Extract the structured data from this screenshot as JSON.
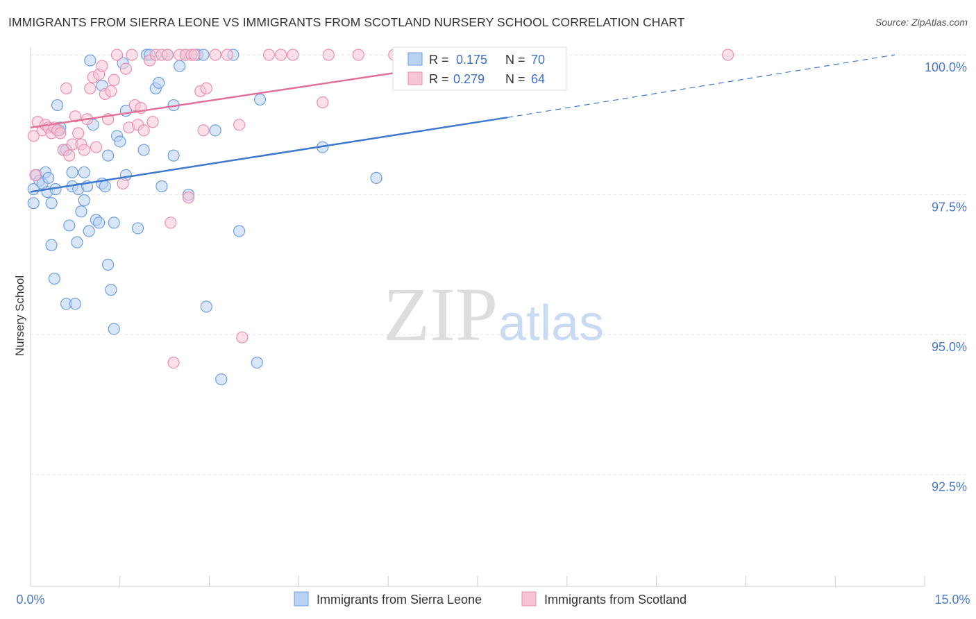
{
  "header": {
    "title": "IMMIGRANTS FROM SIERRA LEONE VS IMMIGRANTS FROM SCOTLAND NURSERY SCHOOL CORRELATION CHART",
    "source": "Source: ZipAtlas.com"
  },
  "watermark": {
    "zip": "ZIP",
    "atlas": "atlas"
  },
  "legend_box": {
    "rows": [
      {
        "r_label": "R =",
        "r_value": "0.175",
        "n_label": "N =",
        "n_value": "70"
      },
      {
        "r_label": "R =",
        "r_value": "0.279",
        "n_label": "N =",
        "n_value": "64"
      }
    ]
  },
  "bottom_legend": {
    "items": [
      "Immigrants from Sierra Leone",
      "Immigrants from Scotland"
    ]
  },
  "chart_data": {
    "type": "scatter",
    "title": "IMMIGRANTS FROM SIERRA LEONE VS IMMIGRANTS FROM SCOTLAND NURSERY SCHOOL CORRELATION CHART",
    "xlabel": "",
    "ylabel": "Nursery School",
    "xlim": [
      0,
      15
    ],
    "ylim": [
      90.5,
      100.2
    ],
    "x_tick_labels": [
      "0.0%",
      "15.0%"
    ],
    "y_ticks": [
      92.5,
      95.0,
      97.5,
      100.0
    ],
    "y_tick_labels": [
      "92.5%",
      "95.0%",
      "97.5%",
      "100.0%"
    ],
    "grid": true,
    "legend_position": "top-center",
    "series": [
      {
        "name": "Immigrants from Sierra Leone",
        "color": "#6f9fe0",
        "fill": "#b9d1f3",
        "R": 0.175,
        "N": 70,
        "trend": {
          "x0": 0.0,
          "y0": 97.55,
          "x1": 8.0,
          "y1": 98.88,
          "dash_to_x": 14.5,
          "dash_to_y": 100.0
        },
        "points": [
          [
            0.05,
            97.35
          ],
          [
            0.05,
            97.6
          ],
          [
            0.1,
            97.85
          ],
          [
            0.15,
            97.75
          ],
          [
            0.2,
            97.7
          ],
          [
            0.25,
            97.9
          ],
          [
            0.28,
            97.55
          ],
          [
            0.3,
            97.8
          ],
          [
            0.35,
            96.6
          ],
          [
            0.35,
            97.35
          ],
          [
            0.4,
            96.0
          ],
          [
            0.42,
            97.6
          ],
          [
            0.45,
            99.1
          ],
          [
            0.48,
            98.65
          ],
          [
            0.5,
            98.7
          ],
          [
            0.55,
            98.3
          ],
          [
            0.6,
            98.3
          ],
          [
            0.6,
            95.55
          ],
          [
            0.65,
            96.95
          ],
          [
            0.7,
            97.65
          ],
          [
            0.7,
            97.9
          ],
          [
            0.75,
            95.55
          ],
          [
            0.78,
            96.65
          ],
          [
            0.8,
            97.6
          ],
          [
            0.85,
            97.2
          ],
          [
            0.9,
            97.9
          ],
          [
            0.9,
            97.4
          ],
          [
            0.95,
            97.65
          ],
          [
            0.98,
            96.85
          ],
          [
            1.0,
            99.9
          ],
          [
            1.05,
            98.75
          ],
          [
            1.1,
            97.05
          ],
          [
            1.15,
            97.0
          ],
          [
            1.2,
            99.45
          ],
          [
            1.2,
            97.7
          ],
          [
            1.25,
            97.65
          ],
          [
            1.3,
            96.25
          ],
          [
            1.3,
            98.2
          ],
          [
            1.35,
            95.8
          ],
          [
            1.4,
            97.0
          ],
          [
            1.4,
            95.1
          ],
          [
            1.45,
            98.55
          ],
          [
            1.5,
            98.45
          ],
          [
            1.55,
            99.85
          ],
          [
            1.6,
            97.85
          ],
          [
            1.6,
            99.0
          ],
          [
            1.8,
            96.9
          ],
          [
            1.9,
            98.3
          ],
          [
            1.95,
            100.0
          ],
          [
            2.0,
            100.0
          ],
          [
            2.1,
            99.4
          ],
          [
            2.15,
            99.5
          ],
          [
            2.2,
            97.65
          ],
          [
            2.3,
            100.0
          ],
          [
            2.4,
            99.1
          ],
          [
            2.4,
            98.2
          ],
          [
            2.5,
            99.8
          ],
          [
            2.6,
            100.0
          ],
          [
            2.65,
            97.5
          ],
          [
            2.8,
            100.0
          ],
          [
            2.9,
            100.0
          ],
          [
            2.95,
            95.5
          ],
          [
            3.1,
            98.65
          ],
          [
            3.4,
            100.0
          ],
          [
            3.2,
            94.2
          ],
          [
            3.5,
            96.85
          ],
          [
            3.8,
            94.5
          ],
          [
            3.85,
            99.2
          ],
          [
            4.9,
            98.35
          ],
          [
            5.8,
            97.8
          ]
        ]
      },
      {
        "name": "Immigrants from Scotland",
        "color": "#ea8fb0",
        "fill": "#f7c6d6",
        "R": 0.279,
        "N": 64,
        "trend": {
          "x0": 0.0,
          "y0": 98.7,
          "x1": 8.0,
          "y1": 99.98
        },
        "points": [
          [
            0.05,
            98.55
          ],
          [
            0.08,
            97.85
          ],
          [
            0.12,
            98.8
          ],
          [
            0.2,
            98.65
          ],
          [
            0.25,
            98.75
          ],
          [
            0.3,
            98.7
          ],
          [
            0.35,
            98.6
          ],
          [
            0.4,
            98.7
          ],
          [
            0.45,
            98.65
          ],
          [
            0.5,
            98.6
          ],
          [
            0.55,
            98.3
          ],
          [
            0.6,
            99.4
          ],
          [
            0.65,
            98.2
          ],
          [
            0.7,
            98.4
          ],
          [
            0.75,
            98.9
          ],
          [
            0.8,
            98.6
          ],
          [
            0.85,
            98.4
          ],
          [
            0.9,
            98.3
          ],
          [
            0.95,
            98.85
          ],
          [
            1.0,
            99.4
          ],
          [
            1.05,
            99.6
          ],
          [
            1.1,
            98.35
          ],
          [
            1.15,
            99.65
          ],
          [
            1.2,
            99.8
          ],
          [
            1.25,
            99.3
          ],
          [
            1.3,
            98.85
          ],
          [
            1.35,
            99.35
          ],
          [
            1.4,
            99.55
          ],
          [
            1.45,
            100.0
          ],
          [
            1.55,
            97.7
          ],
          [
            1.6,
            99.75
          ],
          [
            1.65,
            98.7
          ],
          [
            1.7,
            100.0
          ],
          [
            1.75,
            99.1
          ],
          [
            1.8,
            98.75
          ],
          [
            1.85,
            99.05
          ],
          [
            1.9,
            98.65
          ],
          [
            2.0,
            99.9
          ],
          [
            2.05,
            98.8
          ],
          [
            2.1,
            100.0
          ],
          [
            2.2,
            100.0
          ],
          [
            2.3,
            100.0
          ],
          [
            2.35,
            97.0
          ],
          [
            2.4,
            94.5
          ],
          [
            2.5,
            100.0
          ],
          [
            2.6,
            100.0
          ],
          [
            2.65,
            97.45
          ],
          [
            2.7,
            100.0
          ],
          [
            2.75,
            100.0
          ],
          [
            2.85,
            99.35
          ],
          [
            2.9,
            98.65
          ],
          [
            2.95,
            99.4
          ],
          [
            3.1,
            100.0
          ],
          [
            3.3,
            100.0
          ],
          [
            3.5,
            98.75
          ],
          [
            3.55,
            94.95
          ],
          [
            4.0,
            100.0
          ],
          [
            4.2,
            100.0
          ],
          [
            4.4,
            100.0
          ],
          [
            4.9,
            99.15
          ],
          [
            5.0,
            100.0
          ],
          [
            5.5,
            100.0
          ],
          [
            6.1,
            100.0
          ],
          [
            11.7,
            100.0
          ]
        ]
      }
    ]
  }
}
